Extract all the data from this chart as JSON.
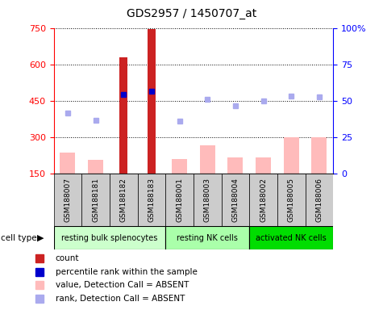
{
  "title": "GDS2957 / 1450707_at",
  "samples": [
    "GSM188007",
    "GSM188181",
    "GSM188182",
    "GSM188183",
    "GSM188001",
    "GSM188003",
    "GSM188004",
    "GSM188002",
    "GSM188005",
    "GSM188006"
  ],
  "cell_types": [
    {
      "label": "resting bulk splenocytes",
      "start": 0,
      "end": 4,
      "color": "#ccffcc"
    },
    {
      "label": "resting NK cells",
      "start": 4,
      "end": 7,
      "color": "#aaffaa"
    },
    {
      "label": "activated NK cells",
      "start": 7,
      "end": 10,
      "color": "#00dd00"
    }
  ],
  "count_values": [
    null,
    null,
    630,
    745,
    null,
    null,
    null,
    null,
    null,
    null
  ],
  "absent_value_bars": [
    235,
    205,
    null,
    null,
    210,
    265,
    215,
    215,
    300,
    300
  ],
  "percentile_rank_present": [
    null,
    null,
    475,
    490,
    null,
    null,
    null,
    null,
    null,
    null
  ],
  "percentile_rank_absent": [
    400,
    370,
    null,
    null,
    365,
    455,
    430,
    450,
    470,
    465
  ],
  "ylim_left": [
    150,
    750
  ],
  "ylim_right": [
    0,
    100
  ],
  "yticks_left": [
    150,
    300,
    450,
    600,
    750
  ],
  "yticks_right": [
    0,
    25,
    50,
    75,
    100
  ],
  "bar_width": 0.55,
  "absent_bar_color": "#ffbbbb",
  "present_rank_color": "#0000cc",
  "absent_rank_color": "#aaaaee",
  "count_bar_color": "#cc2222",
  "sample_box_color": "#cccccc",
  "figure_bg": "#ffffff"
}
